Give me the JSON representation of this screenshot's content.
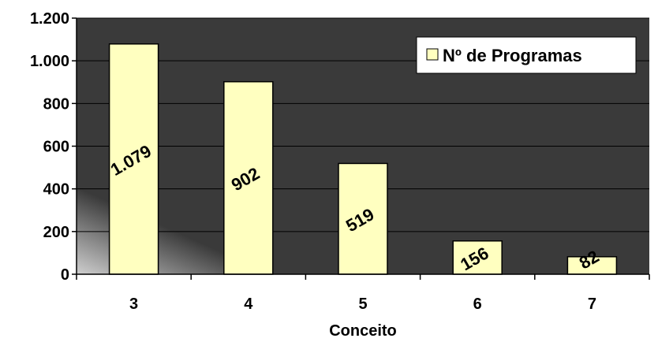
{
  "colors": {
    "plot_bg": "#3a3a3a",
    "bar_fill": "#ffffc0",
    "bar_stroke": "#000000",
    "gridline": "#000000"
  },
  "chart_data": {
    "type": "bar",
    "categories": [
      "3",
      "4",
      "5",
      "6",
      "7"
    ],
    "series": [
      {
        "name": "Nº de Programas",
        "values": [
          1079,
          902,
          519,
          156,
          82
        ],
        "value_labels": [
          "1.079",
          "902",
          "519",
          "156",
          "82"
        ]
      }
    ],
    "xlabel": "Conceito",
    "ylabel": "",
    "ylim": [
      0,
      1200
    ],
    "yticks": [
      0,
      200,
      400,
      600,
      800,
      1000,
      1200
    ],
    "ytick_labels": [
      "0",
      "200",
      "400",
      "600",
      "800",
      "1.000",
      "1.200"
    ],
    "grid": true,
    "legend": "top-right"
  }
}
